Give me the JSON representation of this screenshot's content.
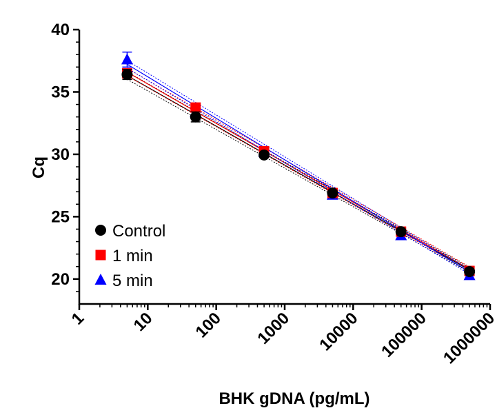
{
  "chart_data": {
    "type": "scatter",
    "title": "",
    "xlabel": "BHK gDNA (pg/mL)",
    "ylabel": "Cq",
    "xscale": "log",
    "xlim": [
      1,
      1000000
    ],
    "ylim": [
      18,
      40
    ],
    "x_ticks": [
      "1",
      "10",
      "100",
      "1000",
      "10000",
      "100000",
      "1000000"
    ],
    "y_ticks": [
      "20",
      "25",
      "30",
      "35",
      "40"
    ],
    "x": [
      5,
      50,
      500,
      5000,
      50000,
      500000
    ],
    "legend_position": "bottom-left",
    "grid": false,
    "series": [
      {
        "name": "Control",
        "marker": "circle",
        "color": "#000000",
        "values": [
          36.4,
          33.0,
          29.95,
          26.9,
          23.8,
          20.6
        ],
        "errors": [
          0.4,
          0.4,
          0.1,
          0.1,
          0.1,
          0.1
        ],
        "fit": {
          "slope": -3.12,
          "intercept": 38.5
        }
      },
      {
        "name": "1 min",
        "marker": "square",
        "color": "#ff0000",
        "values": [
          36.5,
          33.75,
          30.25,
          26.9,
          23.8,
          20.65
        ],
        "errors": [
          0.3,
          0.2,
          0.1,
          0.1,
          0.1,
          0.1
        ],
        "fit": {
          "slope": -3.16,
          "intercept": 38.8
        }
      },
      {
        "name": "5 min",
        "marker": "triangle",
        "color": "#0000ff",
        "values": [
          37.6,
          33.4,
          30.2,
          26.75,
          23.5,
          20.3
        ],
        "errors": [
          0.6,
          0.2,
          0.1,
          0.1,
          0.1,
          0.1
        ],
        "fit": {
          "slope": -3.33,
          "intercept": 39.55
        }
      }
    ]
  }
}
